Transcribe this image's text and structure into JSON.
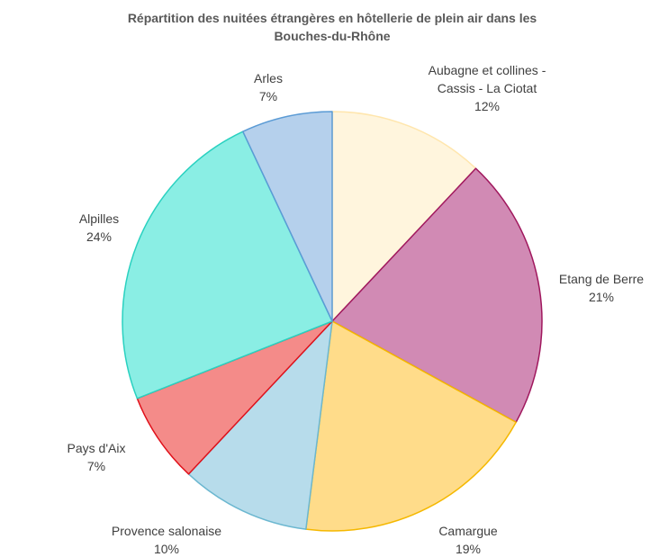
{
  "chart_data": {
    "type": "pie",
    "title": "Répartition des nuitées étrangères en hôtellerie de plein air dans les Bouches-du-Rhône",
    "categories": [
      "Aubagne et collines - Cassis - La Ciotat",
      "Etang de Berre",
      "Camargue",
      "Provence salonaise",
      "Pays d'Aix",
      "Alpilles",
      "Arles"
    ],
    "values": [
      12,
      21,
      19,
      10,
      7,
      24,
      7
    ],
    "value_labels": [
      "12%",
      "21%",
      "19%",
      "10%",
      "7%",
      "24%",
      "7%"
    ],
    "colors": [
      "#fff5dd",
      "#d18ab4",
      "#ffdc8a",
      "#b7dceb",
      "#f48b89",
      "#8aeee4",
      "#b5d0ec"
    ],
    "edge_colors": [
      "#ffe6ad",
      "#a0185e",
      "#f5b800",
      "#6bb7d0",
      "#e0101a",
      "#2ad1c0",
      "#5b9bd5"
    ]
  }
}
